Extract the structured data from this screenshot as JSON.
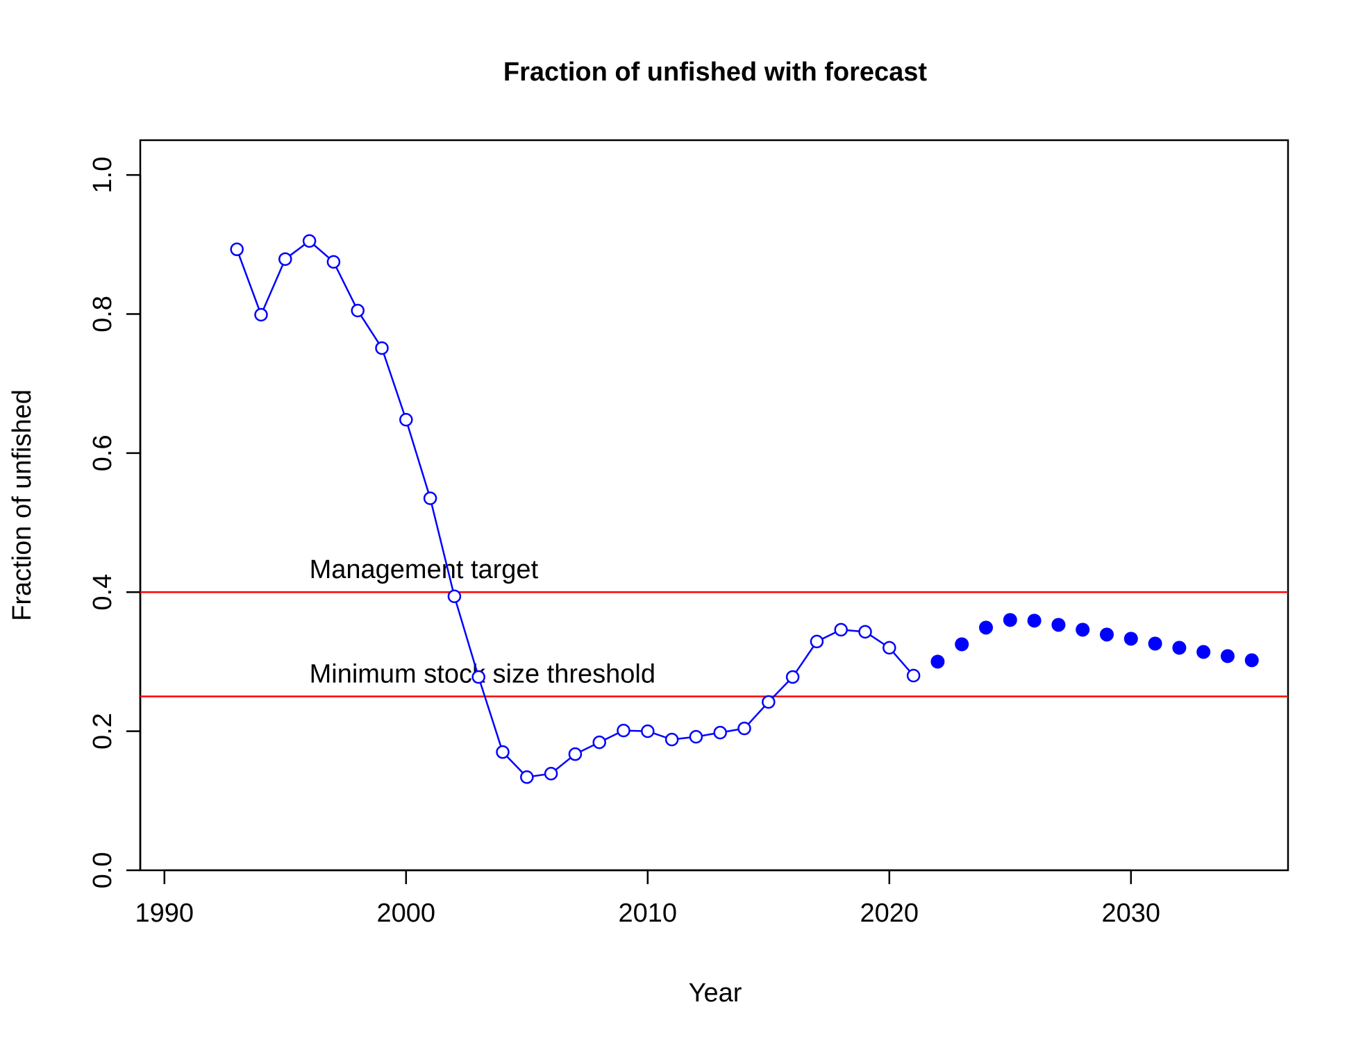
{
  "chart_data": {
    "type": "line",
    "title": "Fraction of unfished with forecast",
    "xlabel": "Year",
    "ylabel": "Fraction of unfished",
    "xlim": [
      1989,
      2036.5
    ],
    "ylim": [
      0,
      1.05
    ],
    "xticks": [
      1990,
      2000,
      2010,
      2020,
      2030
    ],
    "yticks": [
      0.0,
      0.2,
      0.4,
      0.6,
      0.8,
      1.0
    ],
    "ytick_labels": [
      "0.0",
      "0.2",
      "0.4",
      "0.6",
      "0.8",
      "1.0"
    ],
    "grid": false,
    "colors": {
      "series": "#0000ff",
      "reference": "#ff0000",
      "axis": "#000000"
    },
    "series": [
      {
        "style": "line-open-circles",
        "x": [
          1993,
          1994,
          1995,
          1996,
          1997,
          1998,
          1999,
          2000,
          2001,
          2002,
          2003,
          2004,
          2005,
          2006,
          2007,
          2008,
          2009,
          2010,
          2011,
          2012,
          2013,
          2014,
          2015,
          2016,
          2017,
          2018,
          2019,
          2020,
          2021
        ],
        "values": [
          0.893,
          0.799,
          0.879,
          0.905,
          0.875,
          0.805,
          0.751,
          0.648,
          0.535,
          0.394,
          0.278,
          0.17,
          0.134,
          0.139,
          0.167,
          0.184,
          0.201,
          0.2,
          0.188,
          0.192,
          0.198,
          0.204,
          0.242,
          0.278,
          0.329,
          0.346,
          0.343,
          0.32,
          0.28
        ]
      },
      {
        "style": "filled-points",
        "x": [
          2022,
          2023,
          2024,
          2025,
          2026,
          2027,
          2028,
          2029,
          2030,
          2031,
          2032,
          2033,
          2034,
          2035
        ],
        "values": [
          0.3,
          0.325,
          0.349,
          0.36,
          0.359,
          0.353,
          0.346,
          0.339,
          0.333,
          0.326,
          0.32,
          0.314,
          0.308,
          0.302
        ]
      }
    ],
    "reference_lines": [
      {
        "y": 0.4,
        "label": "Management target"
      },
      {
        "y": 0.25,
        "label": "Minimum stock size threshold"
      }
    ]
  }
}
